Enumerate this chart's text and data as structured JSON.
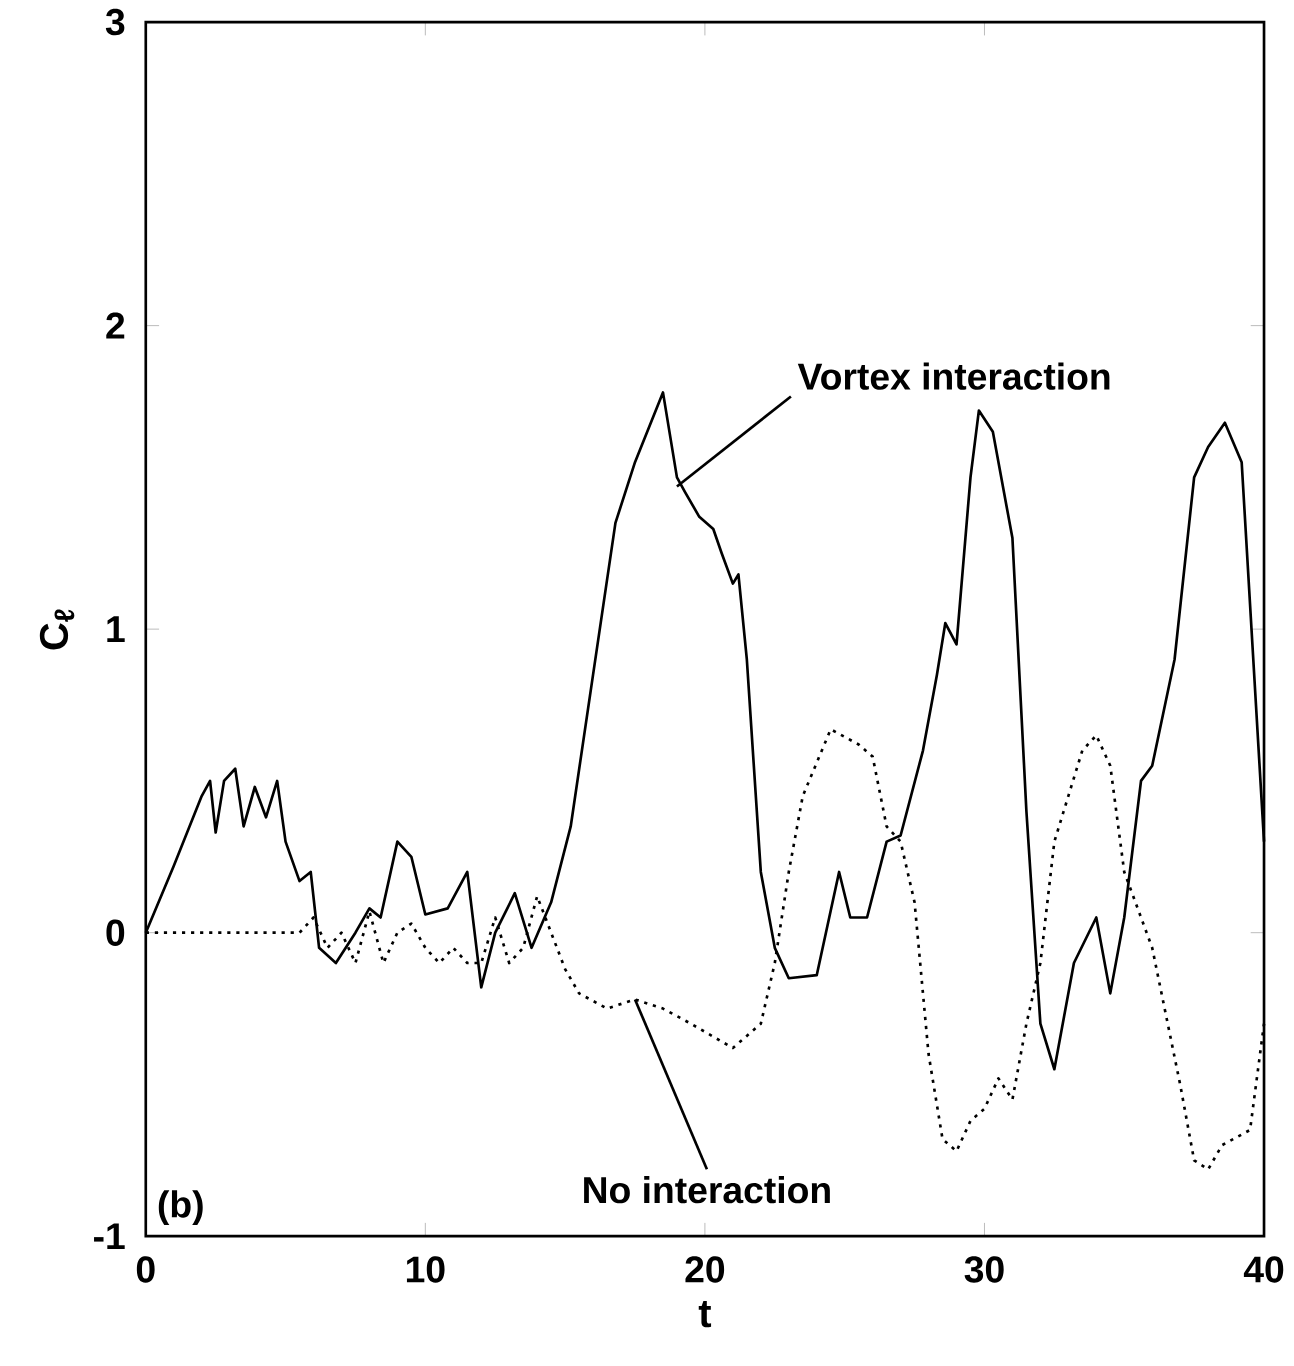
{
  "chart_data": {
    "type": "line",
    "xlabel": "t",
    "ylabel": "C$_{ℓ}$",
    "xlim": [
      0,
      40
    ],
    "ylim": [
      -1,
      3
    ],
    "xticks": [
      0,
      10,
      20,
      30,
      40
    ],
    "yticks": [
      -1,
      0,
      1,
      2,
      3
    ],
    "grid": false,
    "marker": "none",
    "series": [
      {
        "color": "#000000",
        "line_style": "solid",
        "x": [
          0,
          1,
          2,
          2.3,
          2.5,
          2.8,
          3.2,
          3.5,
          3.9,
          4.3,
          4.7,
          5,
          5.5,
          5.9,
          6.2,
          6.8,
          7.5,
          8,
          8.4,
          9,
          9.5,
          10,
          10.8,
          11.5,
          12,
          12.5,
          13.2,
          13.8,
          14.5,
          15.2,
          16,
          16.8,
          17.5,
          18.5,
          19,
          19.3,
          19.8,
          20.3,
          20.6,
          21,
          21.2,
          21.5,
          22,
          22.5,
          23,
          24,
          24.8,
          25.2,
          25.8,
          26.5,
          27,
          27.8,
          28.3,
          28.6,
          29,
          29.5,
          29.8,
          30.3,
          31,
          31.5,
          32,
          32.5,
          33.2,
          34,
          34.5,
          35,
          35.6,
          36,
          36.8,
          37.5,
          38,
          38.6,
          39.2,
          40
        ],
        "values": [
          0,
          0.22,
          0.45,
          0.5,
          0.33,
          0.5,
          0.54,
          0.35,
          0.48,
          0.38,
          0.5,
          0.3,
          0.17,
          0.2,
          -0.05,
          -0.1,
          0,
          0.08,
          0.05,
          0.3,
          0.25,
          0.06,
          0.08,
          0.2,
          -0.18,
          0,
          0.13,
          -0.05,
          0.1,
          0.35,
          0.85,
          1.35,
          1.55,
          1.78,
          1.5,
          1.45,
          1.37,
          1.33,
          1.25,
          1.15,
          1.18,
          0.9,
          0.2,
          -0.05,
          -0.15,
          -0.14,
          0.2,
          0.05,
          0.05,
          0.3,
          0.32,
          0.6,
          0.85,
          1.02,
          0.95,
          1.5,
          1.72,
          1.65,
          1.3,
          0.4,
          -0.3,
          -0.45,
          -0.1,
          0.05,
          -0.2,
          0.05,
          0.5,
          0.55,
          0.9,
          1.5,
          1.6,
          1.68,
          1.55,
          0.3
        ]
      },
      {
        "color": "#000000",
        "line_style": "dotted",
        "x": [
          0,
          5.5,
          6,
          6.5,
          7,
          7.5,
          8,
          8.5,
          9,
          9.5,
          10,
          10.5,
          11,
          11.5,
          12,
          12.5,
          13,
          13.5,
          14,
          14.5,
          15,
          15.5,
          16.5,
          17.5,
          18.5,
          19.5,
          21,
          22,
          22.5,
          23,
          23.5,
          24.5,
          25.5,
          26,
          26.5,
          27,
          27.5,
          28,
          28.5,
          29,
          29.5,
          30,
          30.5,
          31,
          31.5,
          32,
          32.5,
          33,
          33.5,
          34,
          34.5,
          35,
          36,
          37,
          37.5,
          38,
          38.5,
          39.5,
          40
        ],
        "values": [
          0,
          0,
          0.05,
          -0.05,
          0,
          -0.1,
          0.07,
          -0.1,
          0,
          0.03,
          -0.05,
          -0.1,
          -0.05,
          -0.1,
          -0.1,
          0.05,
          -0.1,
          -0.05,
          0.12,
          0,
          -0.12,
          -0.2,
          -0.25,
          -0.22,
          -0.25,
          -0.3,
          -0.38,
          -0.3,
          -0.1,
          0.2,
          0.45,
          0.67,
          0.62,
          0.58,
          0.35,
          0.3,
          0.1,
          -0.4,
          -0.68,
          -0.72,
          -0.62,
          -0.58,
          -0.48,
          -0.55,
          -0.3,
          -0.1,
          0.3,
          0.45,
          0.6,
          0.65,
          0.55,
          0.2,
          -0.05,
          -0.5,
          -0.75,
          -0.78,
          -0.7,
          -0.65,
          -0.3
        ]
      }
    ],
    "annotations": [
      {
        "text": "Vortex interaction",
        "x": 19,
        "y": 1.47
      },
      {
        "text": "No interaction",
        "x": 17.5,
        "y": -0.22
      },
      "(b)"
    ]
  }
}
